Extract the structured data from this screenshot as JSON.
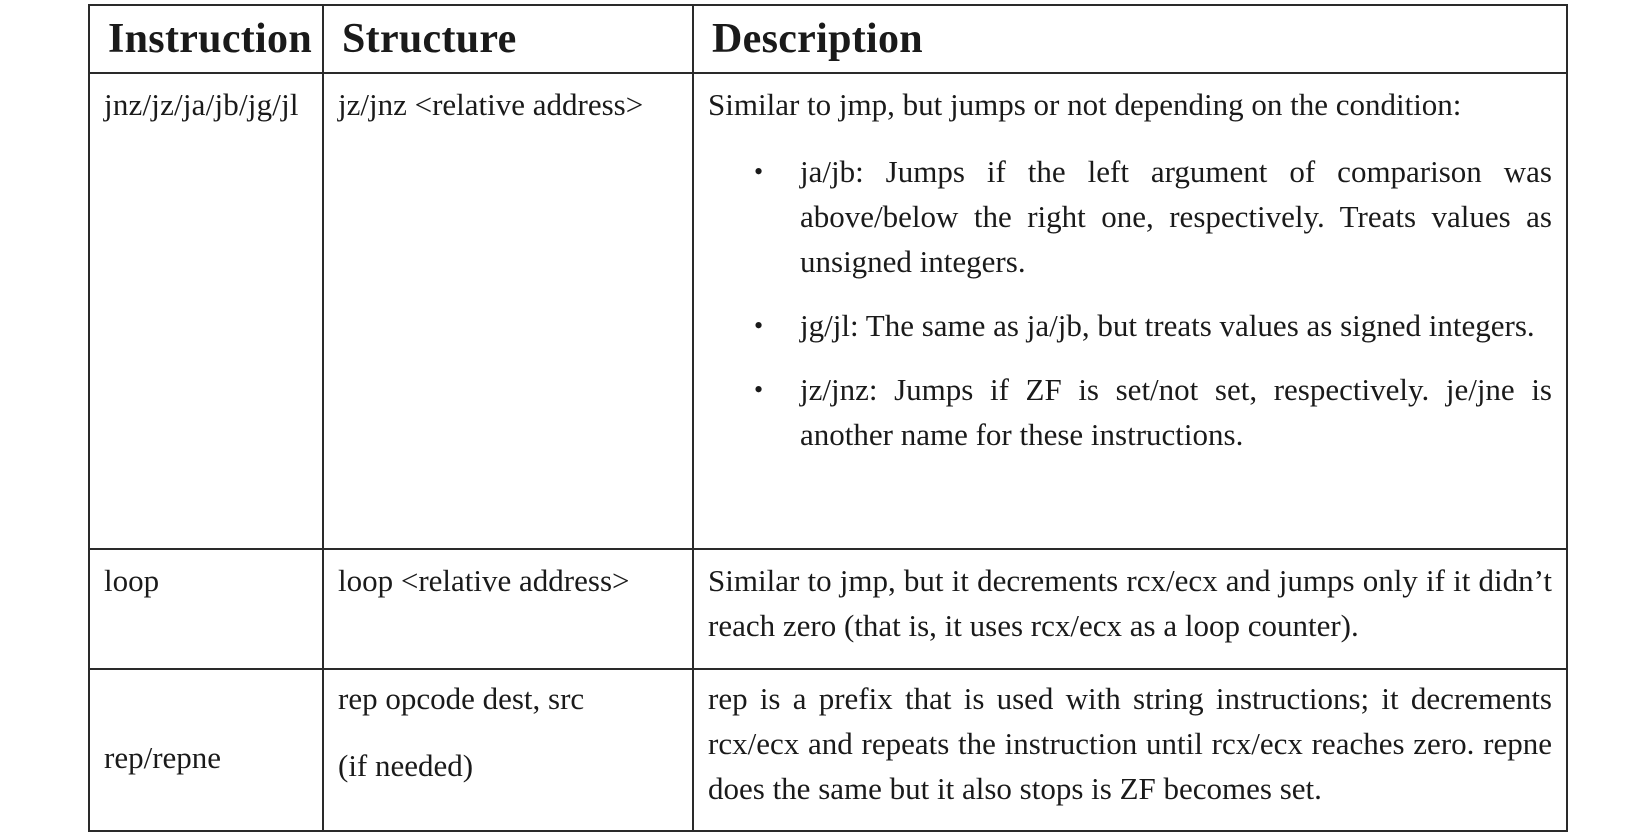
{
  "table": {
    "headers": {
      "instruction": "Instruction",
      "structure": "Structure",
      "description": "Description"
    },
    "rows": [
      {
        "instruction": "jnz/jz/ja/jb/jg/jl",
        "structure": "jz/jnz <relative address>",
        "description_intro": "Similar to jmp, but jumps or not depending on the condition:",
        "conditions": [
          "ja/jb: Jumps if the left argument of comparison was above/below the right one, respectively. Treats values as unsigned integers.",
          "jg/jl: The same as ja/jb, but treats values as signed integers.",
          "jz/jnz: Jumps if ZF is set/not set, respectively. je/jne is another name for these instructions."
        ],
        "bullet": "•"
      },
      {
        "instruction": "loop",
        "structure": "loop <relative address>",
        "description": "Similar to jmp, but it decrements rcx/ecx and jumps only if it didn’t reach zero (that is, it uses rcx/ecx as a loop counter)."
      },
      {
        "instruction": "rep/repne",
        "structure_line1": "rep opcode dest, src",
        "structure_line2": "(if needed)",
        "description": "rep is a prefix that is used with string instructions; it decrements rcx/ecx and repeats the instruction until rcx/ecx reaches zero. repne does the same but it also stops is ZF becomes set."
      }
    ]
  }
}
